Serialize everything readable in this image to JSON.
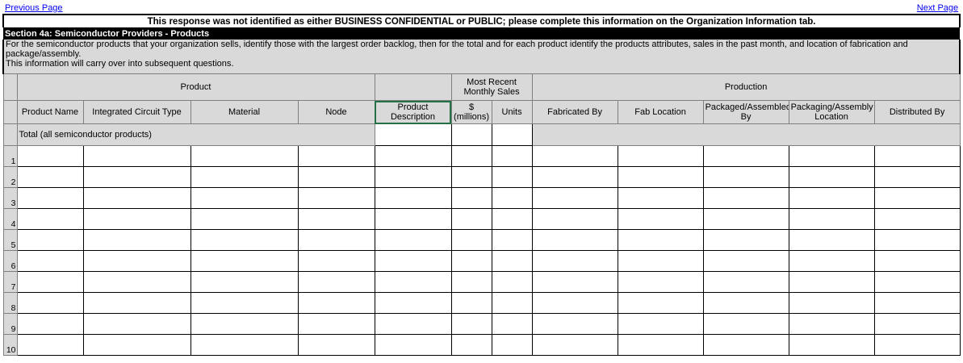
{
  "nav": {
    "previous": "Previous Page",
    "next": "Next Page"
  },
  "notice": "This response was not identified as either BUSINESS CONFIDENTIAL or PUBLIC; please complete this information on the Organization Information tab.",
  "section": {
    "title": "Section 4a: Semiconductor Providers - Products",
    "description": "For the semiconductor products that your organization sells, identify those with the largest order backlog, then for the total and for each product identify the products attributes, sales in the past month, and location of fabrication and package/assembly.",
    "note": "This information will carry over into subsequent questions."
  },
  "table": {
    "groups": [
      "Product",
      "Most Recent Monthly Sales",
      "Production"
    ],
    "columns": [
      "Product Name",
      "Integrated Circuit Type",
      "Material",
      "Node",
      "Product Description",
      "$ (millions)",
      "Units",
      "Fabricated By",
      "Fab Location",
      "Packaged/Assembled By",
      "Packaging/Assembly Location",
      "Distributed By"
    ],
    "total_label": "Total (all semiconductor products)",
    "row_numbers": [
      1,
      2,
      3,
      4,
      5,
      6,
      7,
      8,
      9,
      10
    ]
  }
}
